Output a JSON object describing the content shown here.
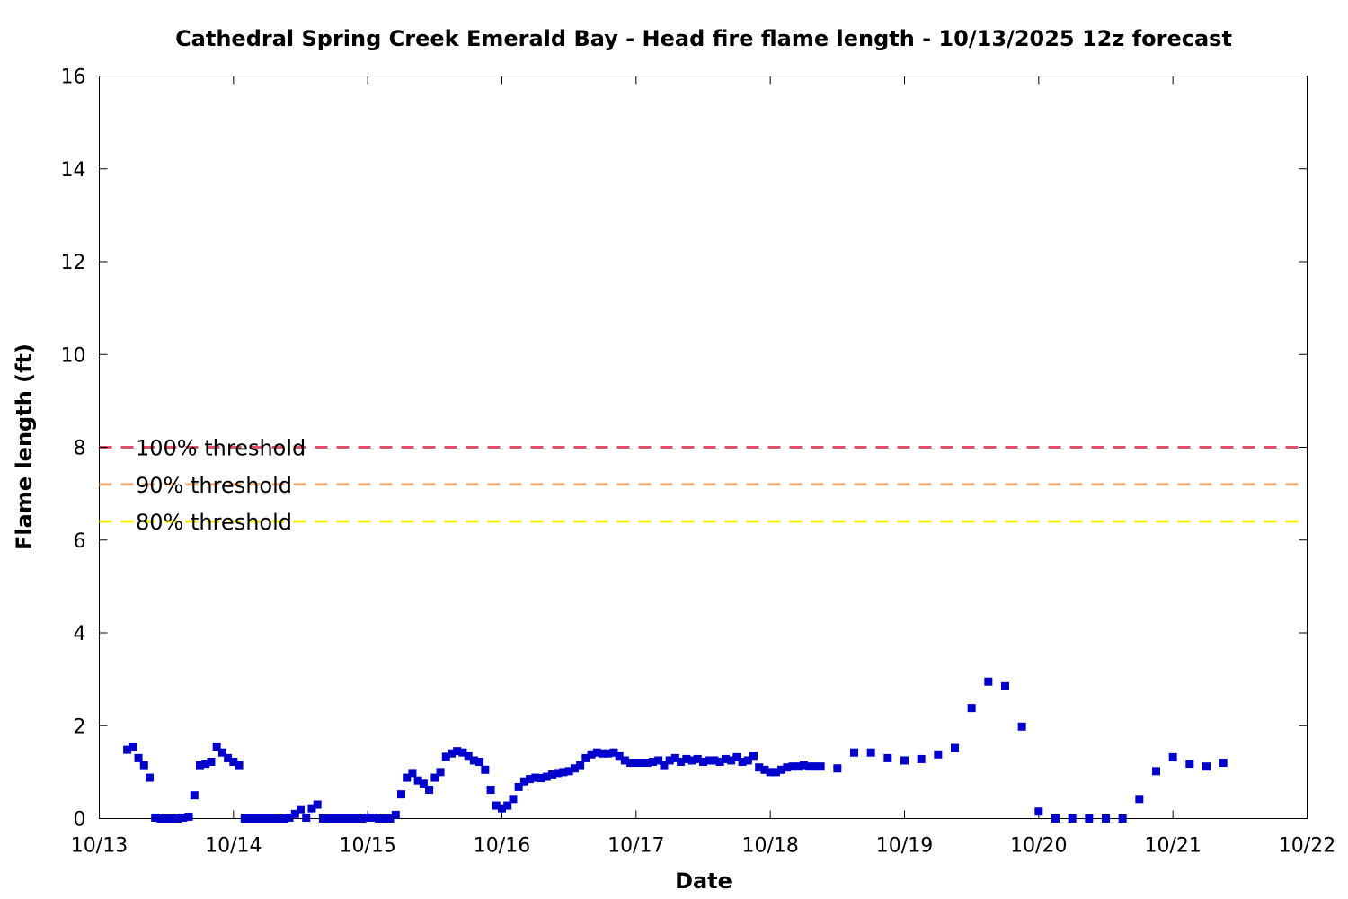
{
  "chart_data": {
    "type": "scatter",
    "title": "Cathedral Spring Creek Emerald Bay - Head fire flame length - 10/13/2025 12z forecast",
    "xlabel": "Date",
    "ylabel": "Flame length (ft)",
    "xlim": [
      "10/13",
      "10/22"
    ],
    "ylim": [
      0,
      16
    ],
    "x_tick_labels": [
      "10/13",
      "10/14",
      "10/15",
      "10/16",
      "10/17",
      "10/18",
      "10/19",
      "10/20",
      "10/21",
      "10/22"
    ],
    "y_tick_labels": [
      "0",
      "2",
      "4",
      "6",
      "8",
      "10",
      "12",
      "14",
      "16"
    ],
    "grid": false,
    "marker_color": "#0000cc",
    "thresholds": [
      {
        "label": "100% threshold",
        "value": 8.0,
        "color": "#e0506a"
      },
      {
        "label": "90% threshold",
        "value": 7.2,
        "color": "#f5b07a"
      },
      {
        "label": "80% threshold",
        "value": 6.4,
        "color": "#f0f000"
      }
    ],
    "points": [
      [
        "10/13 05:00",
        1.48
      ],
      [
        "10/13 06:00",
        1.55
      ],
      [
        "10/13 07:00",
        1.3
      ],
      [
        "10/13 08:00",
        1.15
      ],
      [
        "10/13 09:00",
        0.88
      ],
      [
        "10/13 10:00",
        0.02
      ],
      [
        "10/13 11:00",
        0.0
      ],
      [
        "10/13 12:00",
        0.0
      ],
      [
        "10/13 13:00",
        0.0
      ],
      [
        "10/13 14:00",
        0.0
      ],
      [
        "10/13 15:00",
        0.02
      ],
      [
        "10/13 16:00",
        0.04
      ],
      [
        "10/13 17:00",
        0.5
      ],
      [
        "10/13 18:00",
        1.15
      ],
      [
        "10/13 19:00",
        1.18
      ],
      [
        "10/13 20:00",
        1.22
      ],
      [
        "10/13 21:00",
        1.55
      ],
      [
        "10/13 22:00",
        1.42
      ],
      [
        "10/13 23:00",
        1.3
      ],
      [
        "10/14 00:00",
        1.22
      ],
      [
        "10/14 01:00",
        1.15
      ],
      [
        "10/14 02:00",
        0.0
      ],
      [
        "10/14 03:00",
        0.0
      ],
      [
        "10/14 04:00",
        0.0
      ],
      [
        "10/14 05:00",
        0.0
      ],
      [
        "10/14 06:00",
        0.0
      ],
      [
        "10/14 07:00",
        0.0
      ],
      [
        "10/14 08:00",
        0.0
      ],
      [
        "10/14 09:00",
        0.0
      ],
      [
        "10/14 10:00",
        0.02
      ],
      [
        "10/14 11:00",
        0.1
      ],
      [
        "10/14 12:00",
        0.2
      ],
      [
        "10/14 13:00",
        0.02
      ],
      [
        "10/14 14:00",
        0.22
      ],
      [
        "10/14 15:00",
        0.3
      ],
      [
        "10/14 16:00",
        0.0
      ],
      [
        "10/14 17:00",
        0.0
      ],
      [
        "10/14 18:00",
        0.0
      ],
      [
        "10/14 19:00",
        0.0
      ],
      [
        "10/14 20:00",
        0.0
      ],
      [
        "10/14 21:00",
        0.0
      ],
      [
        "10/14 22:00",
        0.0
      ],
      [
        "10/14 23:00",
        0.0
      ],
      [
        "10/15 00:00",
        0.02
      ],
      [
        "10/15 01:00",
        0.02
      ],
      [
        "10/15 02:00",
        0.0
      ],
      [
        "10/15 03:00",
        0.0
      ],
      [
        "10/15 04:00",
        0.0
      ],
      [
        "10/15 05:00",
        0.08
      ],
      [
        "10/15 06:00",
        0.52
      ],
      [
        "10/15 07:00",
        0.88
      ],
      [
        "10/15 08:00",
        0.98
      ],
      [
        "10/15 09:00",
        0.82
      ],
      [
        "10/15 10:00",
        0.75
      ],
      [
        "10/15 11:00",
        0.62
      ],
      [
        "10/15 12:00",
        0.88
      ],
      [
        "10/15 13:00",
        1.0
      ],
      [
        "10/15 14:00",
        1.33
      ],
      [
        "10/15 15:00",
        1.4
      ],
      [
        "10/15 16:00",
        1.45
      ],
      [
        "10/15 17:00",
        1.42
      ],
      [
        "10/15 18:00",
        1.35
      ],
      [
        "10/15 19:00",
        1.25
      ],
      [
        "10/15 20:00",
        1.22
      ],
      [
        "10/15 21:00",
        1.05
      ],
      [
        "10/15 22:00",
        0.62
      ],
      [
        "10/15 23:00",
        0.28
      ],
      [
        "10/16 00:00",
        0.22
      ],
      [
        "10/16 01:00",
        0.28
      ],
      [
        "10/16 02:00",
        0.42
      ],
      [
        "10/16 03:00",
        0.68
      ],
      [
        "10/16 04:00",
        0.8
      ],
      [
        "10/16 05:00",
        0.85
      ],
      [
        "10/16 06:00",
        0.88
      ],
      [
        "10/16 07:00",
        0.87
      ],
      [
        "10/16 08:00",
        0.9
      ],
      [
        "10/16 09:00",
        0.95
      ],
      [
        "10/16 10:00",
        0.98
      ],
      [
        "10/16 11:00",
        1.0
      ],
      [
        "10/16 12:00",
        1.02
      ],
      [
        "10/16 13:00",
        1.08
      ],
      [
        "10/16 14:00",
        1.15
      ],
      [
        "10/16 15:00",
        1.3
      ],
      [
        "10/16 16:00",
        1.38
      ],
      [
        "10/16 17:00",
        1.42
      ],
      [
        "10/16 18:00",
        1.4
      ],
      [
        "10/16 19:00",
        1.4
      ],
      [
        "10/16 20:00",
        1.42
      ],
      [
        "10/16 21:00",
        1.35
      ],
      [
        "10/16 22:00",
        1.25
      ],
      [
        "10/16 23:00",
        1.2
      ],
      [
        "10/17 00:00",
        1.2
      ],
      [
        "10/17 01:00",
        1.2
      ],
      [
        "10/17 02:00",
        1.2
      ],
      [
        "10/17 03:00",
        1.22
      ],
      [
        "10/17 04:00",
        1.25
      ],
      [
        "10/17 05:00",
        1.15
      ],
      [
        "10/17 06:00",
        1.25
      ],
      [
        "10/17 07:00",
        1.3
      ],
      [
        "10/17 08:00",
        1.22
      ],
      [
        "10/17 09:00",
        1.28
      ],
      [
        "10/17 10:00",
        1.25
      ],
      [
        "10/17 11:00",
        1.28
      ],
      [
        "10/17 12:00",
        1.22
      ],
      [
        "10/17 13:00",
        1.25
      ],
      [
        "10/17 14:00",
        1.25
      ],
      [
        "10/17 15:00",
        1.22
      ],
      [
        "10/17 16:00",
        1.28
      ],
      [
        "10/17 17:00",
        1.25
      ],
      [
        "10/17 18:00",
        1.32
      ],
      [
        "10/17 19:00",
        1.22
      ],
      [
        "10/17 20:00",
        1.25
      ],
      [
        "10/17 21:00",
        1.35
      ],
      [
        "10/17 22:00",
        1.1
      ],
      [
        "10/17 23:00",
        1.05
      ],
      [
        "10/18 00:00",
        1.0
      ],
      [
        "10/18 01:00",
        1.0
      ],
      [
        "10/18 02:00",
        1.05
      ],
      [
        "10/18 03:00",
        1.1
      ],
      [
        "10/18 04:00",
        1.12
      ],
      [
        "10/18 05:00",
        1.12
      ],
      [
        "10/18 06:00",
        1.15
      ],
      [
        "10/18 07:00",
        1.12
      ],
      [
        "10/18 08:00",
        1.12
      ],
      [
        "10/18 09:00",
        1.12
      ],
      [
        "10/18 12:00",
        1.08
      ],
      [
        "10/18 15:00",
        1.42
      ],
      [
        "10/18 18:00",
        1.42
      ],
      [
        "10/18 21:00",
        1.3
      ],
      [
        "10/19 00:00",
        1.25
      ],
      [
        "10/19 03:00",
        1.28
      ],
      [
        "10/19 06:00",
        1.38
      ],
      [
        "10/19 09:00",
        1.52
      ],
      [
        "10/19 12:00",
        2.38
      ],
      [
        "10/19 15:00",
        2.95
      ],
      [
        "10/19 18:00",
        2.85
      ],
      [
        "10/19 21:00",
        1.98
      ],
      [
        "10/20 00:00",
        0.15
      ],
      [
        "10/20 03:00",
        0.0
      ],
      [
        "10/20 06:00",
        0.0
      ],
      [
        "10/20 09:00",
        0.0
      ],
      [
        "10/20 12:00",
        0.0
      ],
      [
        "10/20 15:00",
        0.0
      ],
      [
        "10/20 18:00",
        0.42
      ],
      [
        "10/20 21:00",
        1.02
      ],
      [
        "10/21 00:00",
        1.32
      ],
      [
        "10/21 03:00",
        1.18
      ],
      [
        "10/21 06:00",
        1.12
      ],
      [
        "10/21 09:00",
        1.2
      ]
    ]
  }
}
